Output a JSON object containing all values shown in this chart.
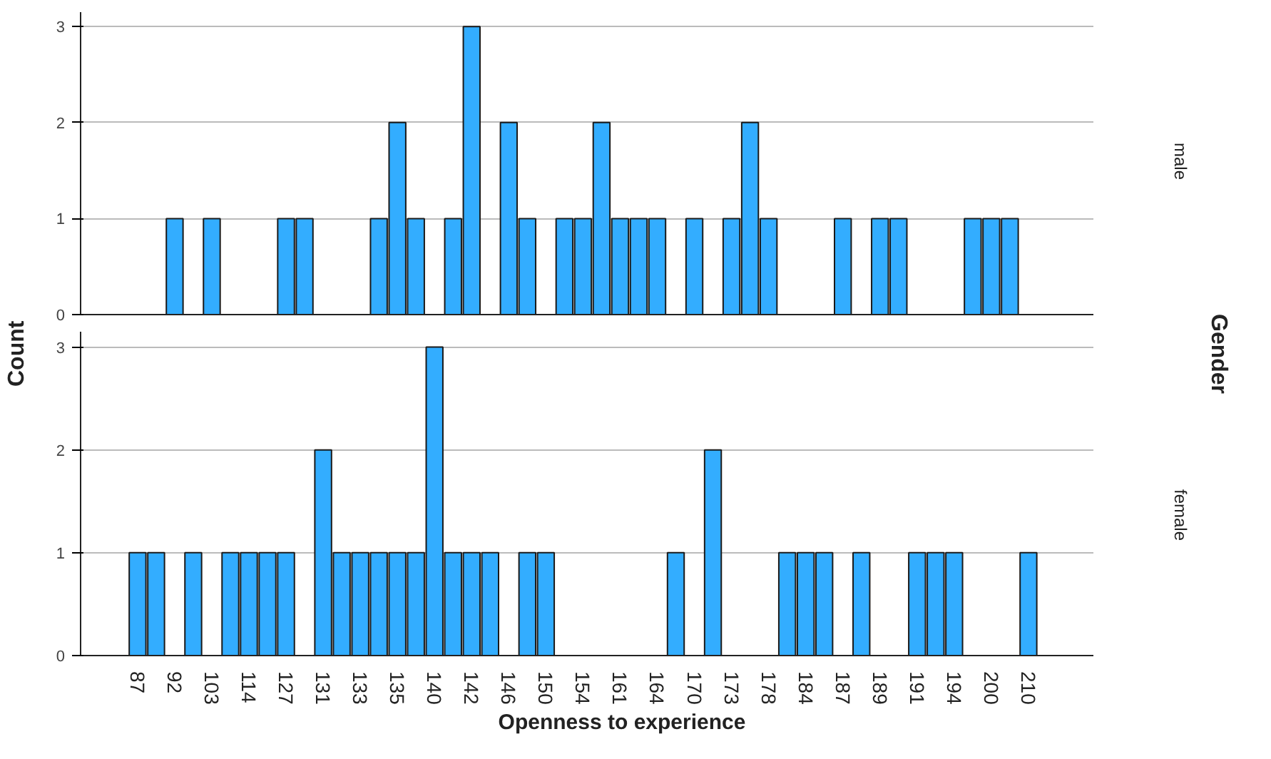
{
  "chart_data": [
    {
      "type": "bar",
      "ylabel": "Count",
      "y2label": "male",
      "annotations": [
        "Gender"
      ],
      "tick_labels": "y",
      "grid": "y",
      "ylim": [
        0,
        3.15
      ],
      "yticks": [
        0,
        1,
        2,
        3
      ],
      "categories": [
        "87",
        null,
        "92",
        null,
        "103",
        null,
        "114",
        null,
        "127",
        null,
        "131",
        null,
        "133",
        null,
        "135",
        null,
        "140",
        null,
        "142",
        null,
        "146",
        null,
        "150",
        null,
        "154",
        null,
        "161",
        null,
        "164",
        null,
        "170",
        null,
        "173",
        null,
        "178",
        null,
        "184",
        null,
        "187",
        null,
        "189",
        null,
        "191",
        null,
        "194",
        null,
        "200",
        null,
        "210"
      ],
      "series": [
        {
          "color": "#33adff",
          "values": [
            null,
            null,
            1,
            null,
            1,
            null,
            null,
            null,
            1,
            1,
            null,
            null,
            null,
            1,
            2,
            1,
            null,
            1,
            3,
            null,
            2,
            1,
            null,
            1,
            1,
            2,
            1,
            1,
            1,
            null,
            1,
            null,
            1,
            2,
            1,
            null,
            null,
            null,
            1,
            null,
            1,
            1,
            null,
            null,
            null,
            1,
            1,
            1,
            null
          ]
        }
      ]
    },
    {
      "type": "bar",
      "xlabel": "Openness to experience",
      "y2label": "female",
      "grid": "y",
      "ylim": [
        0,
        3.15
      ],
      "yticks": [
        0,
        1,
        2,
        3
      ],
      "categories": [
        "87",
        null,
        "92",
        null,
        "103",
        null,
        "114",
        null,
        "127",
        null,
        "131",
        null,
        "133",
        null,
        "135",
        null,
        "140",
        null,
        "142",
        null,
        "146",
        null,
        "150",
        null,
        "154",
        null,
        "161",
        null,
        "164",
        null,
        "170",
        null,
        "173",
        null,
        "178",
        null,
        "184",
        null,
        "187",
        null,
        "189",
        null,
        "191",
        null,
        "194",
        null,
        "200",
        null,
        "210"
      ],
      "series": [
        {
          "color": "#33adff",
          "values": [
            1,
            1,
            null,
            1,
            null,
            1,
            1,
            1,
            1,
            null,
            2,
            1,
            1,
            1,
            1,
            1,
            3,
            1,
            1,
            1,
            null,
            1,
            1,
            null,
            null,
            null,
            null,
            null,
            null,
            1,
            null,
            2,
            null,
            null,
            null,
            1,
            1,
            1,
            null,
            1,
            null,
            null,
            1,
            1,
            1,
            null,
            null,
            null,
            1
          ]
        }
      ]
    }
  ]
}
